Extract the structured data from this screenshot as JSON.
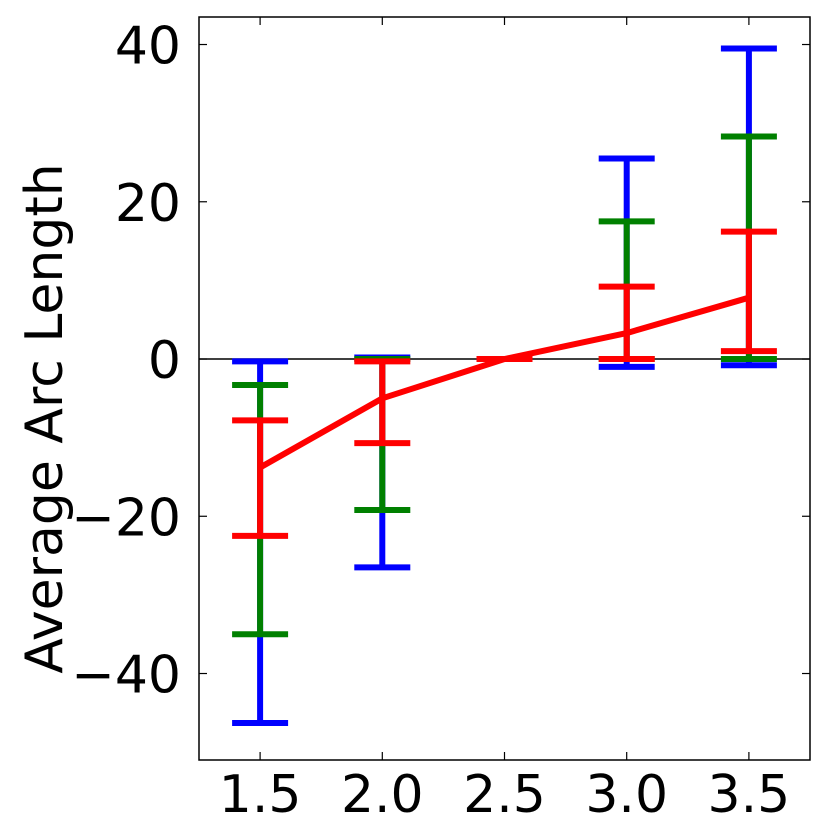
{
  "chart_data": {
    "type": "line",
    "title": "",
    "xlabel": "",
    "ylabel": "Average Arc Length",
    "x": [
      1.5,
      2.0,
      2.5,
      3.0,
      3.5
    ],
    "x_tick_labels": [
      "1.5",
      "2.0",
      "2.5",
      "3.0",
      "3.5"
    ],
    "y_ticks": [
      40,
      20,
      0,
      -20,
      -40
    ],
    "y_tick_labels": [
      "40",
      "20",
      "0",
      "−20",
      "−40"
    ],
    "xlim": [
      1.25,
      3.75
    ],
    "ylim": [
      -51,
      43.5
    ],
    "zero_line": true,
    "grid": false,
    "series": [
      {
        "color": "#0000ff",
        "kind": "errorbar",
        "lower": [
          -46.3,
          -26.5,
          0.0,
          -1.0,
          -0.8
        ],
        "upper": [
          -0.3,
          0.2,
          0.0,
          25.5,
          39.5
        ]
      },
      {
        "color": "#008000",
        "kind": "errorbar",
        "lower": [
          -35.0,
          -19.2,
          0.0,
          0.0,
          0.0
        ],
        "upper": [
          -3.3,
          0.0,
          0.0,
          17.5,
          28.3
        ]
      },
      {
        "color": "#ff0000",
        "kind": "errorbar+line",
        "values": [
          -13.8,
          -5.0,
          0.0,
          3.3,
          7.8
        ],
        "lower": [
          -22.5,
          -10.7,
          0.0,
          0.0,
          1.0
        ],
        "upper": [
          -7.8,
          -0.3,
          0.0,
          9.2,
          16.2
        ]
      }
    ]
  }
}
